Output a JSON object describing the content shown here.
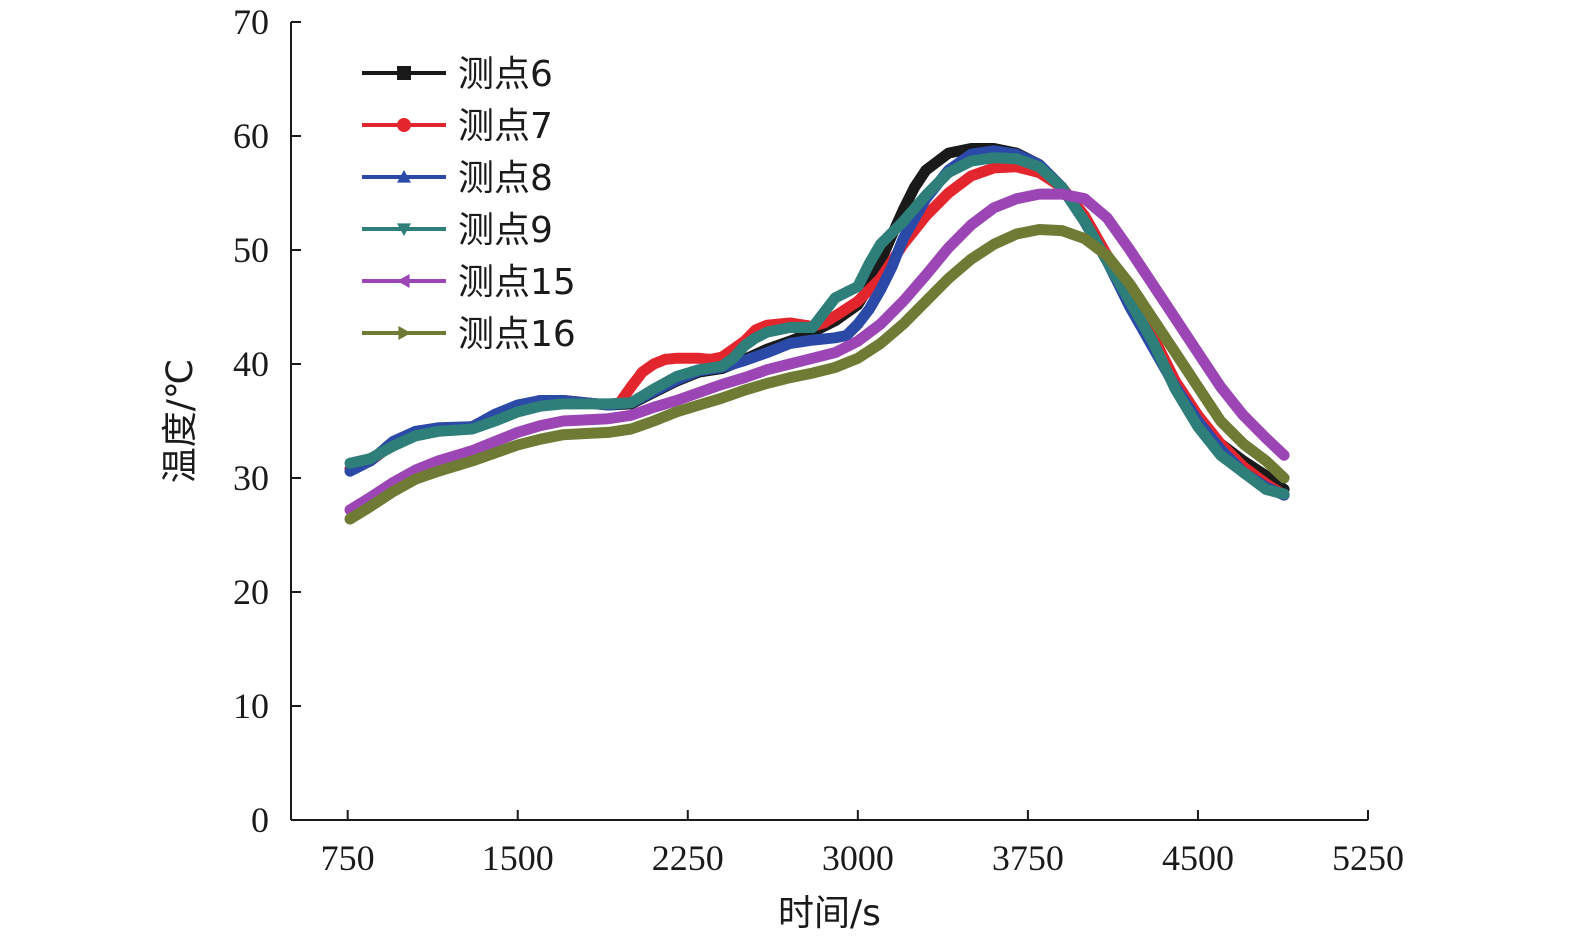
{
  "chart_data": {
    "type": "line",
    "xlabel": "时间/s",
    "ylabel": "温度/℃",
    "xlim": [
      500,
      5250
    ],
    "ylim": [
      0,
      70
    ],
    "xticks": [
      750,
      1500,
      2250,
      3000,
      3750,
      4500,
      5250
    ],
    "yticks": [
      0,
      10,
      20,
      30,
      40,
      50,
      60,
      70
    ],
    "legend_position": "top-left",
    "series": [
      {
        "name": "测点6",
        "color": "#1a1a1a",
        "marker": "square",
        "x": [
          760,
          850,
          950,
          1050,
          1150,
          1300,
          1400,
          1500,
          1600,
          1700,
          1800,
          1900,
          2000,
          2100,
          2200,
          2300,
          2400,
          2500,
          2600,
          2700,
          2800,
          2900,
          3000,
          3050,
          3100,
          3150,
          3200,
          3250,
          3300,
          3400,
          3500,
          3600,
          3700,
          3800,
          3900,
          4000,
          4100,
          4200,
          4300,
          4400,
          4500,
          4600,
          4700,
          4800,
          4880
        ],
        "y": [
          30.8,
          31.5,
          33.0,
          34.0,
          34.3,
          34.5,
          35.5,
          36.3,
          36.8,
          36.8,
          36.6,
          36.4,
          36.5,
          37.5,
          38.5,
          39.3,
          39.6,
          40.4,
          41.3,
          42.0,
          42.8,
          43.8,
          45.2,
          46.8,
          49.0,
          51.3,
          53.5,
          55.5,
          57.0,
          58.5,
          58.9,
          58.9,
          58.5,
          57.5,
          55.5,
          52.5,
          49.0,
          45.5,
          42.0,
          38.0,
          35.0,
          33.0,
          31.5,
          30.2,
          29.0
        ]
      },
      {
        "name": "测点7",
        "color": "#e3262e",
        "marker": "circle",
        "x": [
          760,
          850,
          950,
          1050,
          1150,
          1300,
          1400,
          1500,
          1600,
          1700,
          1800,
          1900,
          1950,
          2000,
          2050,
          2100,
          2150,
          2200,
          2300,
          2350,
          2400,
          2500,
          2550,
          2600,
          2700,
          2800,
          2850,
          2900,
          3000,
          3100,
          3200,
          3300,
          3400,
          3500,
          3600,
          3700,
          3800,
          3900,
          4000,
          4100,
          4200,
          4300,
          4400,
          4500,
          4600,
          4700,
          4800,
          4880
        ],
        "y": [
          30.8,
          31.5,
          33.0,
          34.0,
          34.3,
          34.5,
          35.5,
          36.3,
          36.8,
          36.8,
          36.6,
          36.4,
          36.6,
          38.0,
          39.3,
          40.0,
          40.4,
          40.5,
          40.5,
          40.4,
          40.6,
          42.0,
          43.0,
          43.4,
          43.6,
          43.3,
          43.6,
          44.2,
          45.5,
          47.5,
          50.5,
          53.0,
          55.0,
          56.5,
          57.2,
          57.3,
          56.8,
          55.5,
          53.0,
          49.5,
          46.0,
          42.5,
          38.5,
          35.5,
          33.0,
          31.0,
          29.5,
          28.5
        ]
      },
      {
        "name": "测点8",
        "color": "#2b4aa8",
        "marker": "triangle-up",
        "x": [
          760,
          850,
          950,
          1050,
          1150,
          1300,
          1400,
          1500,
          1600,
          1700,
          1800,
          1900,
          2000,
          2100,
          2200,
          2300,
          2400,
          2500,
          2600,
          2700,
          2800,
          2900,
          2950,
          3000,
          3050,
          3100,
          3150,
          3200,
          3300,
          3400,
          3500,
          3600,
          3700,
          3800,
          3900,
          4000,
          4100,
          4200,
          4300,
          4400,
          4500,
          4600,
          4700,
          4800,
          4880
        ],
        "y": [
          30.6,
          31.5,
          33.2,
          34.1,
          34.4,
          34.5,
          35.6,
          36.4,
          36.8,
          36.8,
          36.6,
          36.4,
          36.6,
          37.6,
          38.6,
          39.4,
          39.7,
          40.3,
          41.0,
          41.8,
          42.1,
          42.3,
          42.5,
          43.5,
          44.8,
          46.5,
          48.5,
          51.0,
          54.5,
          57.0,
          58.4,
          58.7,
          58.4,
          57.5,
          55.5,
          52.5,
          49.0,
          45.0,
          41.5,
          38.0,
          35.0,
          32.5,
          30.5,
          29.2,
          28.5
        ]
      },
      {
        "name": "测点9",
        "color": "#2e7e7a",
        "marker": "triangle-down",
        "x": [
          760,
          850,
          950,
          1050,
          1150,
          1300,
          1400,
          1500,
          1600,
          1700,
          1800,
          1900,
          2000,
          2100,
          2200,
          2300,
          2400,
          2450,
          2500,
          2550,
          2600,
          2700,
          2800,
          2850,
          2900,
          2950,
          3000,
          3050,
          3100,
          3200,
          3300,
          3400,
          3500,
          3600,
          3700,
          3800,
          3900,
          4000,
          4100,
          4200,
          4300,
          4400,
          4500,
          4600,
          4700,
          4800,
          4880
        ],
        "y": [
          31.3,
          31.7,
          32.8,
          33.7,
          34.1,
          34.3,
          35.0,
          35.8,
          36.3,
          36.5,
          36.5,
          36.5,
          36.6,
          37.8,
          38.9,
          39.5,
          39.8,
          40.5,
          41.6,
          42.3,
          42.8,
          43.2,
          43.2,
          44.5,
          45.8,
          46.3,
          46.8,
          48.8,
          50.5,
          52.5,
          54.8,
          56.8,
          57.8,
          58.1,
          58.0,
          57.3,
          55.5,
          52.5,
          49.0,
          45.5,
          42.0,
          37.8,
          34.5,
          32.0,
          30.5,
          29.0,
          28.6
        ]
      },
      {
        "name": "测点15",
        "color": "#9b46b4",
        "marker": "triangle-left",
        "x": [
          760,
          850,
          950,
          1050,
          1150,
          1300,
          1400,
          1500,
          1600,
          1700,
          1800,
          1900,
          2000,
          2100,
          2200,
          2300,
          2400,
          2500,
          2600,
          2700,
          2800,
          2900,
          3000,
          3100,
          3200,
          3300,
          3400,
          3500,
          3600,
          3700,
          3800,
          3900,
          4000,
          4100,
          4200,
          4300,
          4400,
          4500,
          4600,
          4700,
          4800,
          4880
        ],
        "y": [
          27.2,
          28.3,
          29.6,
          30.7,
          31.5,
          32.4,
          33.2,
          34.0,
          34.6,
          35.0,
          35.1,
          35.2,
          35.5,
          36.2,
          36.8,
          37.5,
          38.2,
          38.8,
          39.5,
          40.0,
          40.5,
          41.0,
          42.0,
          43.5,
          45.5,
          47.8,
          50.2,
          52.2,
          53.7,
          54.5,
          54.9,
          54.9,
          54.5,
          52.8,
          50.0,
          47.0,
          44.0,
          41.0,
          38.0,
          35.5,
          33.5,
          32.0
        ]
      },
      {
        "name": "测点16",
        "color": "#6f7a34",
        "marker": "triangle-right",
        "x": [
          760,
          850,
          950,
          1050,
          1150,
          1300,
          1400,
          1500,
          1600,
          1700,
          1800,
          1900,
          2000,
          2100,
          2200,
          2300,
          2400,
          2500,
          2600,
          2700,
          2800,
          2900,
          3000,
          3100,
          3200,
          3300,
          3400,
          3500,
          3600,
          3700,
          3800,
          3900,
          4000,
          4100,
          4200,
          4300,
          4400,
          4500,
          4600,
          4700,
          4800,
          4880
        ],
        "y": [
          26.4,
          27.5,
          28.8,
          29.9,
          30.6,
          31.5,
          32.2,
          32.9,
          33.4,
          33.8,
          33.9,
          34.0,
          34.3,
          35.0,
          35.8,
          36.4,
          37.0,
          37.7,
          38.3,
          38.8,
          39.2,
          39.7,
          40.5,
          41.8,
          43.5,
          45.5,
          47.5,
          49.2,
          50.5,
          51.4,
          51.8,
          51.7,
          51.0,
          49.5,
          47.0,
          44.0,
          41.0,
          38.0,
          35.0,
          33.0,
          31.5,
          30.0
        ]
      }
    ]
  }
}
